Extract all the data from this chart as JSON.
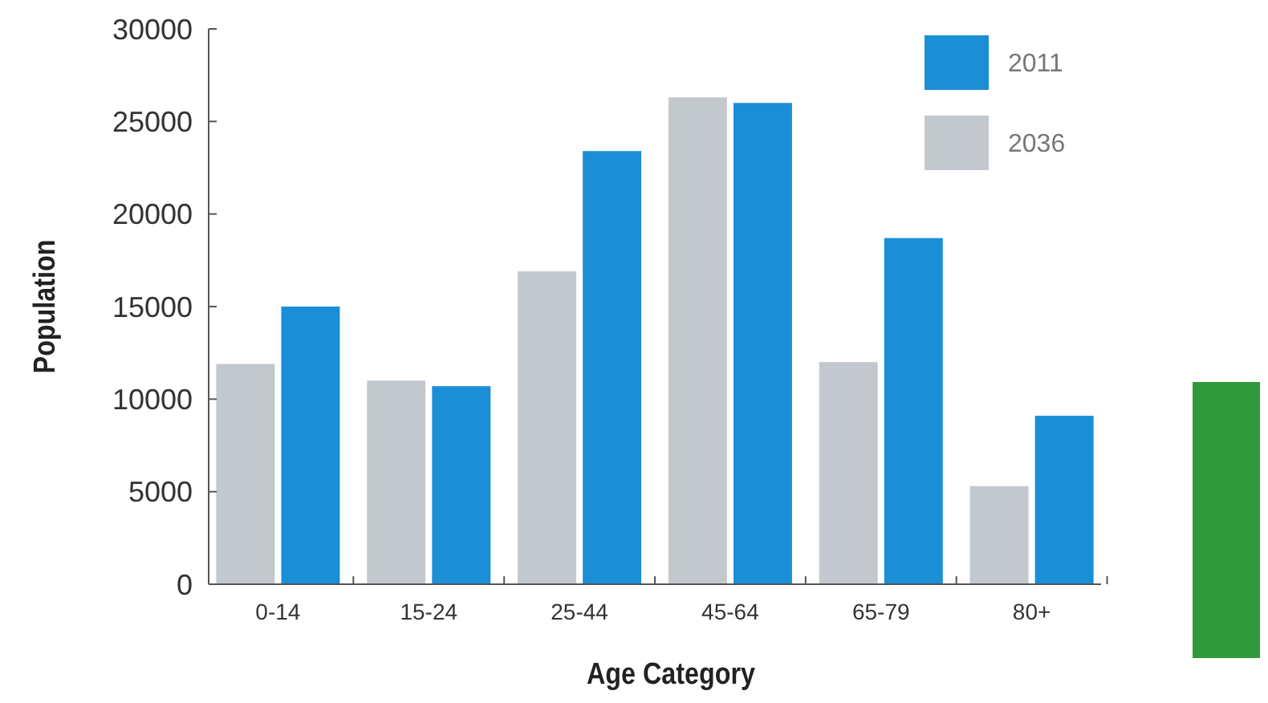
{
  "chart_data": {
    "type": "bar",
    "xlabel": "Age Category",
    "ylabel": "Population",
    "categories": [
      "0-14",
      "15-24",
      "25-44",
      "45-64",
      "65-79",
      "80+"
    ],
    "series": [
      {
        "name": "2036",
        "color": "#c3c8ce",
        "values": [
          11900,
          11000,
          16900,
          26300,
          12000,
          5300
        ]
      },
      {
        "name": "2011",
        "color": "#1a8fd6",
        "values": [
          15000,
          10700,
          23400,
          26000,
          18700,
          9100
        ]
      }
    ],
    "ylim": [
      0,
      30000
    ],
    "yticks": [
      0,
      5000,
      10000,
      15000,
      20000,
      25000,
      30000
    ],
    "grid": false,
    "legend": "top right"
  }
}
